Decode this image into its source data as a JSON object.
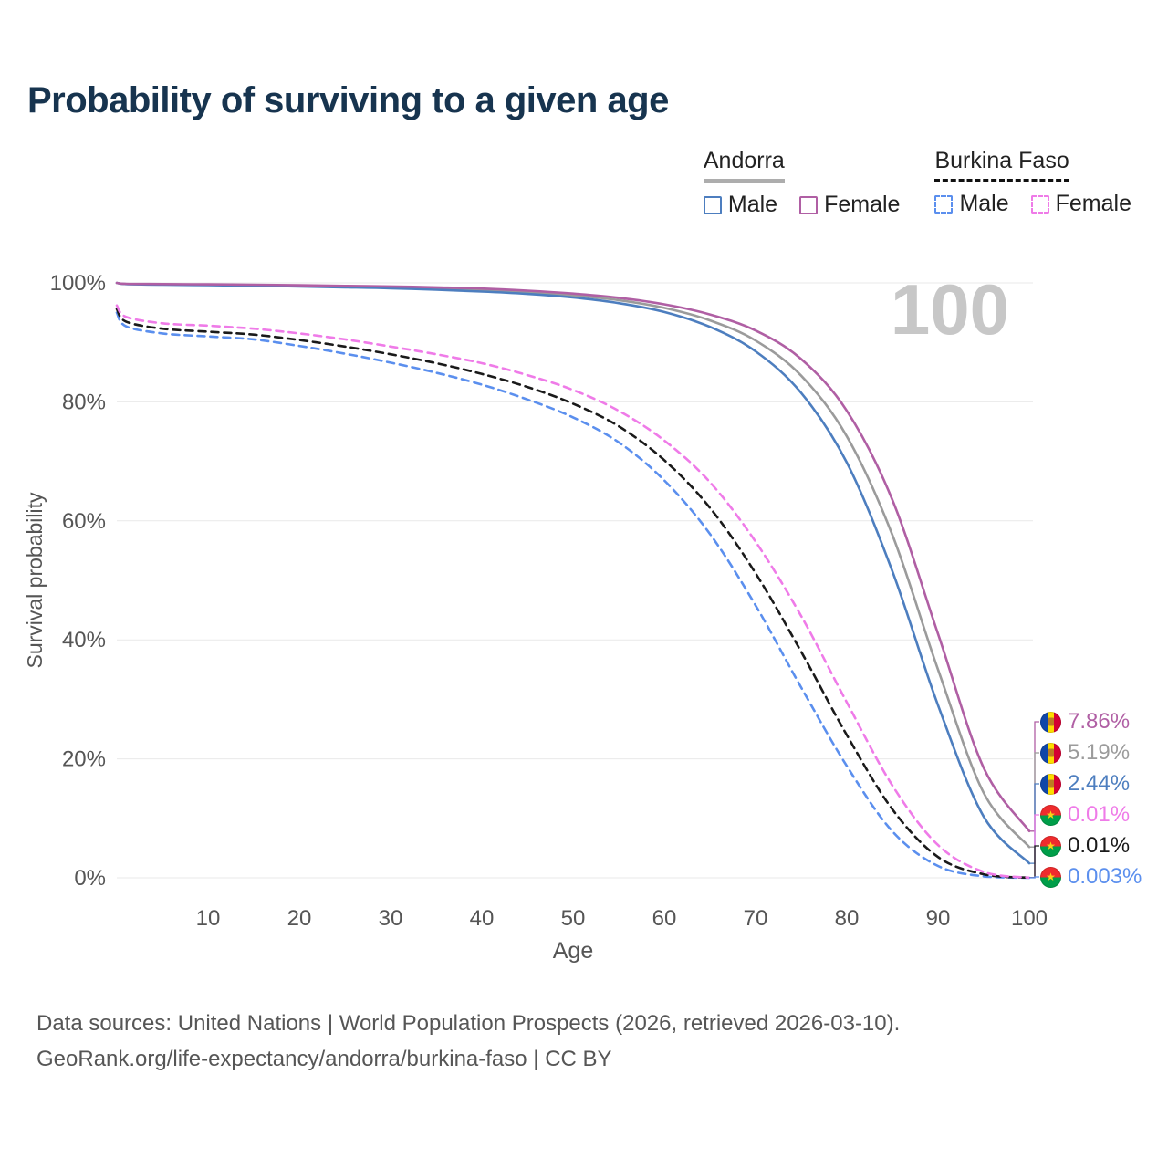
{
  "title": "Probability of surviving to a given age",
  "watermark": "100",
  "legend": {
    "groups": [
      {
        "name": "Andorra",
        "style": "solid",
        "entries": [
          {
            "label": "Male",
            "color": "#4D7EBF",
            "dashed": false
          },
          {
            "label": "Female",
            "color": "#B05FA4",
            "dashed": false
          }
        ]
      },
      {
        "name": "Burkina Faso",
        "style": "dashed",
        "entries": [
          {
            "label": "Male",
            "color": "#5B8FEE",
            "dashed": true
          },
          {
            "label": "Female",
            "color": "#EF7BE8",
            "dashed": true
          }
        ]
      }
    ]
  },
  "chart_data": {
    "type": "line",
    "title": "Probability of surviving to a given age",
    "xlabel": "Age",
    "ylabel": "Survival probability",
    "xlim": [
      0,
      100
    ],
    "ylim": [
      0,
      100
    ],
    "x_ticks": [
      10,
      20,
      30,
      40,
      50,
      60,
      70,
      80,
      90,
      100
    ],
    "y_ticks": [
      0,
      20,
      40,
      60,
      80,
      100
    ],
    "y_tick_labels": [
      "0%",
      "20%",
      "40%",
      "60%",
      "80%",
      "100%"
    ],
    "grid": "horizontal",
    "legend_position": "top-right",
    "hover_age": 100,
    "x": [
      0,
      1,
      5,
      10,
      15,
      20,
      25,
      30,
      35,
      40,
      45,
      50,
      55,
      60,
      65,
      70,
      75,
      80,
      85,
      90,
      95,
      100
    ],
    "series": [
      {
        "id": "andorra-both",
        "name": "Andorra — Both sexes",
        "color": "#9B9B9B",
        "dashed": false,
        "end_value_pct": 5.19,
        "values": [
          100,
          99.82,
          99.75,
          99.68,
          99.6,
          99.5,
          99.38,
          99.25,
          99.05,
          98.8,
          98.45,
          97.9,
          97.1,
          95.8,
          93.7,
          90.3,
          84.4,
          74.2,
          57.6,
          35.0,
          14.3,
          5.19
        ]
      },
      {
        "id": "andorra-male",
        "name": "Andorra — Male",
        "color": "#4D7EBF",
        "dashed": false,
        "end_value_pct": 2.44,
        "values": [
          100,
          99.8,
          99.7,
          99.62,
          99.52,
          99.4,
          99.25,
          99.1,
          98.85,
          98.55,
          98.15,
          97.55,
          96.6,
          95.1,
          92.6,
          88.5,
          81.5,
          69.8,
          51.5,
          29.0,
          10.3,
          2.44
        ]
      },
      {
        "id": "andorra-female",
        "name": "Andorra — Female",
        "color": "#B05FA4",
        "dashed": false,
        "end_value_pct": 7.86,
        "values": [
          100,
          99.85,
          99.8,
          99.75,
          99.7,
          99.6,
          99.5,
          99.4,
          99.25,
          99.05,
          98.7,
          98.2,
          97.5,
          96.4,
          94.7,
          92.0,
          87.2,
          78.5,
          63.5,
          41.0,
          18.5,
          7.86
        ]
      },
      {
        "id": "burkina-faso-male",
        "name": "Burkina Faso — Male",
        "color": "#5B8FEE",
        "dashed": true,
        "end_value_pct": 0.003,
        "values": [
          95.0,
          92.7,
          91.5,
          91.0,
          90.5,
          89.4,
          88.1,
          86.6,
          84.9,
          82.9,
          80.4,
          77.4,
          73.2,
          66.8,
          57.8,
          45.8,
          32.0,
          18.8,
          7.8,
          2.0,
          0.25,
          0.003
        ]
      },
      {
        "id": "burkina-faso-both",
        "name": "Burkina Faso — Both sexes",
        "color": "#1A1A1A",
        "dashed": true,
        "end_value_pct": 0.01,
        "values": [
          95.6,
          93.5,
          92.3,
          91.8,
          91.3,
          90.4,
          89.3,
          88.0,
          86.5,
          84.7,
          82.5,
          79.7,
          75.9,
          70.2,
          62.2,
          51.2,
          38.0,
          24.0,
          11.5,
          3.5,
          0.6,
          0.01
        ]
      },
      {
        "id": "burkina-faso-female",
        "name": "Burkina Faso — Female",
        "color": "#EF7BE8",
        "dashed": true,
        "end_value_pct": 0.01,
        "values": [
          96.2,
          94.3,
          93.2,
          92.8,
          92.3,
          91.5,
          90.5,
          89.3,
          88.0,
          86.5,
          84.5,
          82.0,
          78.5,
          73.5,
          66.5,
          56.5,
          44.0,
          29.5,
          15.5,
          5.5,
          1.0,
          0.01
        ]
      }
    ]
  },
  "end_labels": [
    {
      "series": "andorra-female",
      "value": "7.86%",
      "color": "#B05FA4",
      "flag": "andorra"
    },
    {
      "series": "andorra-both",
      "value": "5.19%",
      "color": "#9B9B9B",
      "flag": "andorra"
    },
    {
      "series": "andorra-male",
      "value": "2.44%",
      "color": "#4D7EBF",
      "flag": "andorra"
    },
    {
      "series": "burkina-faso-female",
      "value": "0.01%",
      "color": "#EF7BE8",
      "flag": "burkina-faso"
    },
    {
      "series": "burkina-faso-both",
      "value": "0.01%",
      "color": "#1A1A1A",
      "flag": "burkina-faso"
    },
    {
      "series": "burkina-faso-male",
      "value": "0.003%",
      "color": "#5B8FEE",
      "flag": "burkina-faso"
    }
  ],
  "footer": {
    "line1": "Data sources: United Nations | World Population Prospects (2026, retrieved 2026-03-10).",
    "line2": "GeoRank.org/life-expectancy/andorra/burkina-faso | CC BY"
  }
}
